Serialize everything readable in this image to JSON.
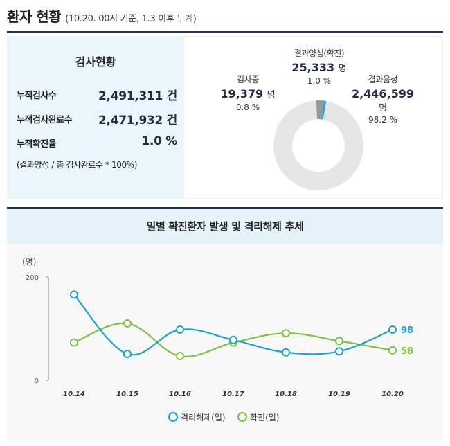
{
  "header": {
    "title": "환자 현황",
    "subtitle": "(10.20. 00시 기준, 1.3 이후 누계)"
  },
  "summary": {
    "title": "검사현황",
    "rows": [
      {
        "label": "누적검사수",
        "value": "2,491,311 건"
      },
      {
        "label": "누적검사완료수",
        "value": "2,471,932 건"
      },
      {
        "label": "누적확진율",
        "value": "1.0 %"
      }
    ],
    "note": "(결과양성 / 총 검사완료수 * 100%)"
  },
  "donut": {
    "segments": [
      {
        "name": "결과양성(확진)",
        "count": "25,333",
        "unit": "명",
        "percent": "1.0 %",
        "value": 1.0,
        "color": "#1aa7e0"
      },
      {
        "name": "결과음성",
        "count": "2,446,599",
        "unit": "명",
        "percent": "98.2 %",
        "value": 98.2,
        "color": "#e6e6e6"
      },
      {
        "name": "검사중",
        "count": "19,379",
        "unit": "명",
        "percent": "0.8 %",
        "value": 0.8,
        "color": "#8e9ba3"
      }
    ]
  },
  "trend": {
    "title": "일별 확진환자 발생 및 격리해제 추세"
  },
  "chart_data": {
    "type": "line",
    "unit_label": "(명)",
    "categories": [
      "10.14",
      "10.15",
      "10.16",
      "10.17",
      "10.18",
      "10.19",
      "10.20"
    ],
    "ylim": [
      0,
      200
    ],
    "yticks": [
      "0",
      "200"
    ],
    "grid": false,
    "legend": "bottom-center",
    "series": [
      {
        "name": "격리해제(일)",
        "color": "#1aa3cc",
        "values": [
          166,
          51,
          98,
          78,
          54,
          56,
          98
        ],
        "end_label": "98"
      },
      {
        "name": "확진(일)",
        "color": "#7dc242",
        "values": [
          73,
          110,
          47,
          73,
          91,
          76,
          58
        ],
        "end_label": "58"
      }
    ]
  }
}
